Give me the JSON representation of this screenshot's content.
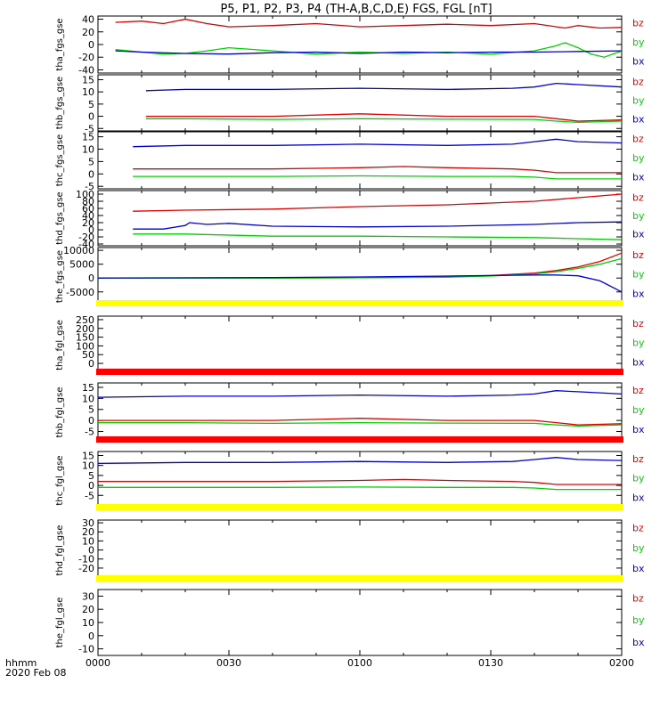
{
  "title": "P5, P1, P2, P3, P4 (TH-A,B,C,D,E) FGS, FGL [nT]",
  "footer": {
    "left_label": "hhmm",
    "date": "2020 Feb 08"
  },
  "x_tick_labels": [
    "0000",
    "0030",
    "0100",
    "0130",
    "0200"
  ],
  "colors": {
    "bz": "#e00000",
    "by": "#00d000",
    "bx": "#0000d0",
    "yellow_bar": "#ffff00",
    "red_bar": "#ff0000"
  },
  "chart_data": [
    {
      "type": "line",
      "ylabel": "tha_fgs_gse",
      "ylim": [
        -45,
        45
      ],
      "yticks": [
        40,
        20,
        0,
        -20,
        -40
      ],
      "x_range_min": [
        0,
        120
      ],
      "grid": false,
      "bands": [],
      "series": [
        {
          "name": "bz",
          "x": [
            4,
            10,
            15,
            20,
            25,
            30,
            40,
            50,
            60,
            70,
            80,
            90,
            100,
            107,
            110,
            115,
            120
          ],
          "values": [
            35,
            37,
            33,
            40,
            33,
            28,
            30,
            33,
            28,
            30,
            32,
            30,
            33,
            26,
            30,
            26,
            27
          ]
        },
        {
          "name": "by",
          "x": [
            4,
            10,
            15,
            20,
            25,
            30,
            40,
            50,
            60,
            70,
            80,
            90,
            100,
            105,
            107,
            110,
            113,
            116,
            120
          ],
          "values": [
            -8,
            -12,
            -15,
            -14,
            -10,
            -5,
            -10,
            -15,
            -12,
            -14,
            -12,
            -15,
            -10,
            -2,
            3,
            -5,
            -15,
            -20,
            -10
          ]
        },
        {
          "name": "bx",
          "x": [
            4,
            10,
            20,
            30,
            40,
            50,
            60,
            70,
            80,
            90,
            100,
            110,
            120
          ],
          "values": [
            -10,
            -12,
            -14,
            -15,
            -13,
            -12,
            -14,
            -12,
            -13,
            -12,
            -12,
            -11,
            -10
          ]
        }
      ]
    },
    {
      "type": "line",
      "ylabel": "thb_fgs_gse",
      "ylim": [
        -6,
        17
      ],
      "yticks": [
        15,
        10,
        5,
        0,
        -5
      ],
      "x_range_min": [
        0,
        120
      ],
      "grid": false,
      "bands": [],
      "series": [
        {
          "name": "bz",
          "x": [
            11,
            20,
            40,
            60,
            80,
            100,
            105,
            110,
            120
          ],
          "values": [
            0,
            0,
            0,
            1,
            0,
            0,
            -1,
            -2,
            -1.5
          ]
        },
        {
          "name": "by",
          "x": [
            11,
            20,
            40,
            60,
            80,
            100,
            105,
            110,
            120
          ],
          "values": [
            -1,
            -1,
            -1.3,
            -1,
            -1.2,
            -1.3,
            -2,
            -2.5,
            -2
          ]
        },
        {
          "name": "bx",
          "x": [
            11,
            20,
            40,
            60,
            80,
            95,
            100,
            105,
            110,
            120
          ],
          "values": [
            10.5,
            11,
            11,
            11.5,
            11,
            11.5,
            12,
            13.5,
            13,
            12
          ]
        }
      ]
    },
    {
      "type": "line",
      "ylabel": "thc_fgs_gse",
      "ylim": [
        -6,
        17
      ],
      "yticks": [
        15,
        10,
        5,
        0,
        -5
      ],
      "x_range_min": [
        0,
        120
      ],
      "grid": false,
      "bands": [],
      "series": [
        {
          "name": "bz",
          "x": [
            8,
            20,
            40,
            60,
            70,
            80,
            95,
            100,
            105,
            110,
            120
          ],
          "values": [
            2,
            2,
            2,
            2.5,
            3,
            2.5,
            2,
            1.5,
            0.5,
            0.5,
            0.5
          ]
        },
        {
          "name": "by",
          "x": [
            8,
            20,
            40,
            60,
            80,
            95,
            100,
            105,
            110,
            120
          ],
          "values": [
            -1,
            -1,
            -1,
            -0.8,
            -1,
            -1,
            -1.3,
            -2,
            -2,
            -2
          ]
        },
        {
          "name": "bx",
          "x": [
            8,
            20,
            40,
            60,
            80,
            95,
            100,
            105,
            110,
            120
          ],
          "values": [
            11,
            11.5,
            11.5,
            12,
            11.5,
            12,
            13,
            14,
            13,
            12.5
          ]
        }
      ]
    },
    {
      "type": "line",
      "ylabel": "thd_fgs_gse",
      "ylim": [
        -45,
        110
      ],
      "yticks": [
        100,
        80,
        60,
        40,
        20,
        0,
        -20,
        -40
      ],
      "x_range_min": [
        0,
        120
      ],
      "grid": false,
      "bands": [],
      "series": [
        {
          "name": "bz",
          "x": [
            8,
            20,
            40,
            60,
            80,
            100,
            110,
            120
          ],
          "values": [
            52,
            55,
            58,
            65,
            70,
            80,
            90,
            100
          ]
        },
        {
          "name": "by",
          "x": [
            8,
            20,
            40,
            60,
            80,
            100,
            110,
            120
          ],
          "values": [
            -12,
            -12,
            -18,
            -18,
            -20,
            -22,
            -25,
            -28
          ]
        },
        {
          "name": "bx",
          "x": [
            8,
            15,
            20,
            21,
            25,
            30,
            40,
            60,
            80,
            100,
            110,
            120
          ],
          "values": [
            2,
            2,
            12,
            20,
            15,
            18,
            10,
            8,
            10,
            15,
            20,
            22
          ]
        }
      ]
    },
    {
      "type": "line",
      "ylabel": "the_fgs_gse",
      "ylim": [
        -7000,
        11000
      ],
      "yticks": [
        10000,
        5000,
        0,
        -5000
      ],
      "x_range_min": [
        0,
        120
      ],
      "grid": false,
      "bands": [
        {
          "side": "bottom",
          "color": "yellow"
        }
      ],
      "series": [
        {
          "name": "bz",
          "x": [
            0,
            40,
            60,
            80,
            90,
            100,
            105,
            110,
            115,
            120
          ],
          "values": [
            0,
            0,
            100,
            400,
            900,
            1800,
            2700,
            4000,
            6000,
            9000
          ]
        },
        {
          "name": "by",
          "x": [
            0,
            40,
            60,
            80,
            90,
            100,
            105,
            110,
            115,
            120
          ],
          "values": [
            0,
            0,
            100,
            300,
            700,
            1500,
            2300,
            3500,
            5000,
            7000
          ]
        },
        {
          "name": "bx",
          "x": [
            0,
            40,
            60,
            80,
            90,
            100,
            105,
            110,
            115,
            120
          ],
          "values": [
            0,
            200,
            400,
            700,
            900,
            1100,
            1100,
            800,
            -1000,
            -5000
          ]
        }
      ]
    },
    {
      "type": "line",
      "ylabel": "tha_fgl_gse",
      "ylim": [
        -15,
        270
      ],
      "yticks": [
        250,
        200,
        150,
        100,
        50,
        0
      ],
      "x_range_min": [
        0,
        120
      ],
      "grid": false,
      "bands": [
        {
          "side": "bottom",
          "color": "red"
        }
      ],
      "series": []
    },
    {
      "type": "line",
      "ylabel": "thb_fgl_gse",
      "ylim": [
        -6,
        17
      ],
      "yticks": [
        15,
        10,
        5,
        0,
        -5
      ],
      "x_range_min": [
        0,
        120
      ],
      "grid": false,
      "bands": [
        {
          "side": "bottom",
          "color": "red"
        }
      ],
      "series": [
        {
          "name": "bz",
          "x": [
            0,
            20,
            40,
            60,
            80,
            100,
            105,
            110,
            120
          ],
          "values": [
            0,
            0,
            0,
            1,
            0,
            0,
            -1,
            -2,
            -1.5
          ]
        },
        {
          "name": "by",
          "x": [
            0,
            20,
            40,
            60,
            80,
            100,
            105,
            110,
            120
          ],
          "values": [
            -1,
            -1,
            -1.3,
            -1,
            -1.2,
            -1.3,
            -2,
            -2.5,
            -2
          ]
        },
        {
          "name": "bx",
          "x": [
            0,
            20,
            40,
            60,
            80,
            95,
            100,
            105,
            110,
            120
          ],
          "values": [
            10.5,
            11,
            11,
            11.5,
            11,
            11.5,
            12,
            13.5,
            13,
            12
          ]
        }
      ]
    },
    {
      "type": "line",
      "ylabel": "thc_fgl_gse",
      "ylim": [
        -8,
        17
      ],
      "yticks": [
        15,
        10,
        5,
        0,
        -5
      ],
      "x_range_min": [
        0,
        120
      ],
      "grid": false,
      "bands": [
        {
          "side": "bottom",
          "color": "yellow"
        }
      ],
      "series": [
        {
          "name": "bz",
          "x": [
            0,
            20,
            40,
            60,
            70,
            80,
            95,
            100,
            105,
            110,
            120
          ],
          "values": [
            2,
            2,
            2,
            2.5,
            3,
            2.5,
            2,
            1.5,
            0.5,
            0.5,
            0.5
          ]
        },
        {
          "name": "by",
          "x": [
            0,
            20,
            40,
            60,
            80,
            95,
            100,
            105,
            110,
            120
          ],
          "values": [
            -1,
            -1,
            -1,
            -0.8,
            -1,
            -1,
            -1.3,
            -2,
            -2,
            -2
          ]
        },
        {
          "name": "bx",
          "x": [
            0,
            20,
            40,
            60,
            80,
            95,
            100,
            105,
            110,
            120
          ],
          "values": [
            11,
            11.5,
            11.5,
            12,
            11.5,
            12,
            13,
            14,
            13,
            12.5
          ]
        }
      ]
    },
    {
      "type": "line",
      "ylabel": "thd_fgl_gse",
      "ylim": [
        -25,
        33
      ],
      "yticks": [
        30,
        20,
        10,
        0,
        -10,
        -20
      ],
      "x_range_min": [
        0,
        120
      ],
      "grid": false,
      "bands": [
        {
          "side": "bottom",
          "color": "yellow"
        }
      ],
      "series": []
    },
    {
      "type": "line",
      "ylabel": "the_fgl_gse",
      "ylim": [
        -15,
        35
      ],
      "yticks": [
        30,
        20,
        10,
        0,
        -10
      ],
      "x_range_min": [
        0,
        120
      ],
      "grid": false,
      "bands": [],
      "series": []
    }
  ]
}
